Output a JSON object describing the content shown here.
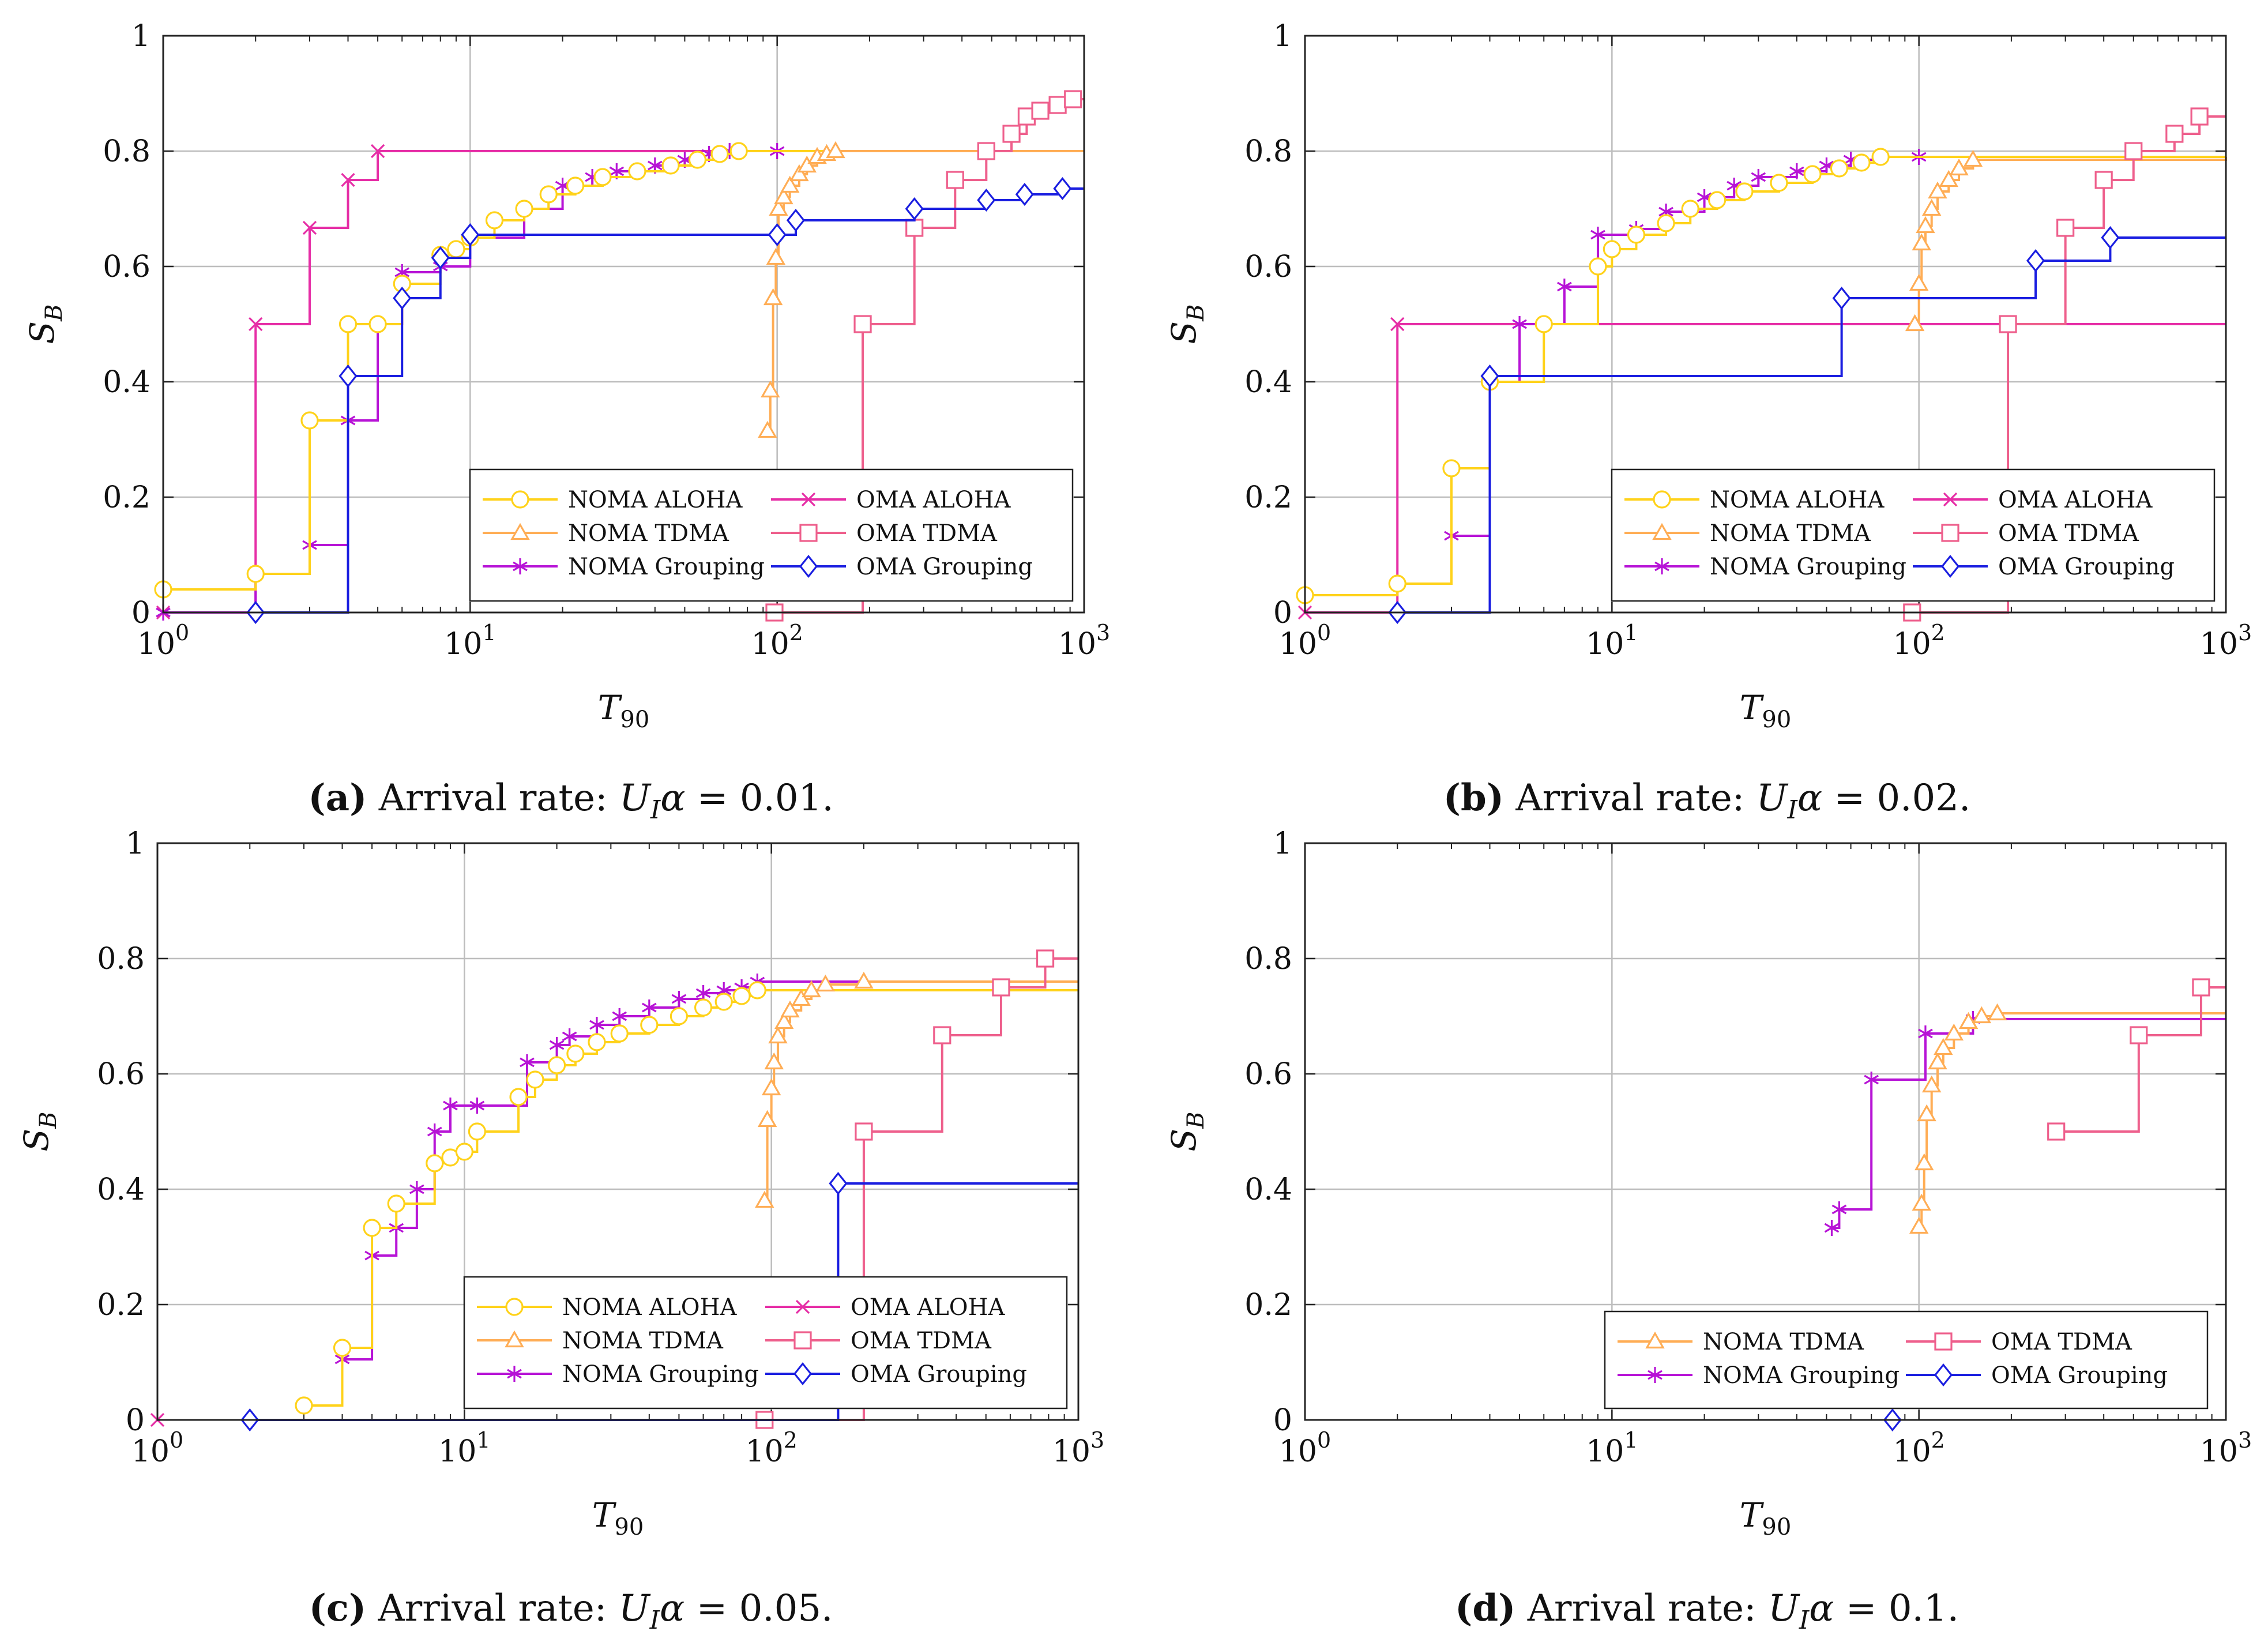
{
  "colors": {
    "NOMA ALOHA": "#ffd21a",
    "NOMA TDMA": "#ffad55",
    "NOMA Grouping": "#b713d6",
    "OMA ALOHA": "#e62ea6",
    "OMA TDMA": "#ee5f8c",
    "OMA Grouping": "#1a1ee0"
  },
  "markers": {
    "NOMA ALOHA": "circle",
    "NOMA TDMA": "triangle",
    "NOMA Grouping": "asterisk",
    "OMA ALOHA": "cross",
    "OMA TDMA": "square",
    "OMA Grouping": "diamond"
  },
  "chart_data": [
    {
      "type": "line",
      "caption_label": "(a)",
      "caption_text": "Arrival rate:",
      "caption_var": "U",
      "caption_sub": "I",
      "caption_alpha": "α",
      "caption_value": "= 0.01.",
      "xlabel": "T",
      "xlabel_sub": "90",
      "ylabel": "S",
      "ylabel_sub": "B",
      "xscale": "log",
      "xlim": [
        1,
        1000
      ],
      "ylim": [
        0,
        1
      ],
      "xticks": [
        "10",
        "10",
        "10",
        "10"
      ],
      "xtick_exp": [
        "0",
        "1",
        "2",
        "3"
      ],
      "yticks": [
        "0",
        "0.2",
        "0.4",
        "0.6",
        "0.8",
        "1"
      ],
      "legend_position": "bottom-right",
      "legend": [
        "NOMA ALOHA",
        "OMA ALOHA",
        "NOMA TDMA",
        "OMA TDMA",
        "NOMA Grouping",
        "OMA Grouping"
      ],
      "series": [
        {
          "name": "OMA ALOHA",
          "x": [
            1,
            2,
            3,
            4,
            5,
            1000
          ],
          "y": [
            0,
            0.5,
            0.667,
            0.75,
            0.8,
            0.8
          ]
        },
        {
          "name": "NOMA Grouping",
          "x": [
            1,
            2,
            3,
            4,
            5,
            6,
            8,
            10,
            15,
            20,
            25,
            30,
            40,
            50,
            60,
            70,
            100,
            1000
          ],
          "y": [
            0,
            0.067,
            0.117,
            0.333,
            0.5,
            0.59,
            0.6,
            0.65,
            0.7,
            0.74,
            0.755,
            0.765,
            0.775,
            0.785,
            0.795,
            0.8,
            0.8,
            0.8
          ]
        },
        {
          "name": "NOMA ALOHA",
          "x": [
            1,
            2,
            3,
            4,
            5,
            6,
            8,
            9,
            10,
            12,
            15,
            18,
            22,
            27,
            35,
            45,
            55,
            65,
            75,
            1000
          ],
          "y": [
            0.04,
            0.067,
            0.333,
            0.5,
            0.5,
            0.57,
            0.62,
            0.63,
            0.65,
            0.68,
            0.7,
            0.725,
            0.74,
            0.755,
            0.765,
            0.775,
            0.785,
            0.795,
            0.8,
            0.8
          ]
        },
        {
          "name": "NOMA TDMA",
          "x": [
            93,
            95,
            97,
            99,
            101,
            105,
            110,
            118,
            125,
            135,
            145,
            155,
            1000
          ],
          "y": [
            0.315,
            0.385,
            0.545,
            0.615,
            0.7,
            0.72,
            0.74,
            0.76,
            0.775,
            0.79,
            0.795,
            0.8,
            0.8
          ]
        },
        {
          "name": "OMA TDMA",
          "x": [
            98,
            190,
            280,
            380,
            480,
            580,
            650,
            720,
            820,
            920,
            1000
          ],
          "y": [
            0,
            0.5,
            0.667,
            0.75,
            0.8,
            0.83,
            0.86,
            0.87,
            0.88,
            0.89,
            0.89
          ]
        },
        {
          "name": "OMA Grouping",
          "x": [
            2,
            4,
            6,
            8,
            10,
            100,
            115,
            280,
            480,
            640,
            850,
            1000
          ],
          "y": [
            0,
            0.41,
            0.545,
            0.615,
            0.655,
            0.655,
            0.68,
            0.7,
            0.715,
            0.725,
            0.735,
            0.735
          ]
        }
      ]
    },
    {
      "type": "line",
      "caption_label": "(b)",
      "caption_text": "Arrival rate:",
      "caption_var": "U",
      "caption_sub": "I",
      "caption_alpha": "α",
      "caption_value": "= 0.02.",
      "xlabel": "T",
      "xlabel_sub": "90",
      "ylabel": "S",
      "ylabel_sub": "B",
      "xscale": "log",
      "xlim": [
        1,
        1000
      ],
      "ylim": [
        0,
        1
      ],
      "xticks": [
        "10",
        "10",
        "10",
        "10"
      ],
      "xtick_exp": [
        "0",
        "1",
        "2",
        "3"
      ],
      "yticks": [
        "0",
        "0.2",
        "0.4",
        "0.6",
        "0.8",
        "1"
      ],
      "legend_position": "bottom-right",
      "legend": [
        "NOMA ALOHA",
        "OMA ALOHA",
        "NOMA TDMA",
        "OMA TDMA",
        "NOMA Grouping",
        "OMA Grouping"
      ],
      "series": [
        {
          "name": "OMA ALOHA",
          "x": [
            1,
            2,
            1000
          ],
          "y": [
            0,
            0.5,
            0.5
          ]
        },
        {
          "name": "NOMA Grouping",
          "x": [
            3,
            4,
            5,
            7,
            9,
            12,
            15,
            20,
            25,
            30,
            40,
            50,
            60,
            75,
            100,
            1000
          ],
          "y": [
            0.133,
            0.4,
            0.5,
            0.565,
            0.655,
            0.665,
            0.695,
            0.72,
            0.74,
            0.755,
            0.765,
            0.775,
            0.785,
            0.79,
            0.79,
            0.79
          ]
        },
        {
          "name": "NOMA ALOHA",
          "x": [
            1,
            2,
            3,
            4,
            6,
            9,
            10,
            12,
            15,
            18,
            22,
            27,
            35,
            45,
            55,
            65,
            75,
            1000
          ],
          "y": [
            0.03,
            0.05,
            0.25,
            0.4,
            0.5,
            0.6,
            0.63,
            0.655,
            0.675,
            0.7,
            0.715,
            0.73,
            0.745,
            0.76,
            0.77,
            0.78,
            0.79,
            0.79
          ]
        },
        {
          "name": "NOMA TDMA",
          "x": [
            97,
            100,
            102,
            105,
            110,
            115,
            125,
            135,
            150,
            1000
          ],
          "y": [
            0.5,
            0.57,
            0.64,
            0.67,
            0.7,
            0.73,
            0.75,
            0.77,
            0.785,
            0.79
          ]
        },
        {
          "name": "OMA TDMA",
          "x": [
            95,
            195,
            300,
            400,
            500,
            680,
            820,
            1000
          ],
          "y": [
            0,
            0.5,
            0.667,
            0.75,
            0.8,
            0.83,
            0.86,
            0.86
          ]
        },
        {
          "name": "OMA Grouping",
          "x": [
            2,
            4,
            56,
            240,
            420,
            1000
          ],
          "y": [
            0,
            0.41,
            0.545,
            0.61,
            0.65,
            0.65
          ]
        }
      ]
    },
    {
      "type": "line",
      "caption_label": "(c)",
      "caption_text": "Arrival rate:",
      "caption_var": "U",
      "caption_sub": "I",
      "caption_alpha": "α",
      "caption_value": "= 0.05.",
      "xlabel": "T",
      "xlabel_sub": "90",
      "ylabel": "S",
      "ylabel_sub": "B",
      "xscale": "log",
      "xlim": [
        1,
        1000
      ],
      "ylim": [
        0,
        1
      ],
      "xticks": [
        "10",
        "10",
        "10",
        "10"
      ],
      "xtick_exp": [
        "0",
        "1",
        "2",
        "3"
      ],
      "yticks": [
        "0",
        "0.2",
        "0.4",
        "0.6",
        "0.8",
        "1"
      ],
      "legend_position": "bottom-right",
      "legend": [
        "NOMA ALOHA",
        "OMA ALOHA",
        "NOMA TDMA",
        "OMA TDMA",
        "NOMA Grouping",
        "OMA Grouping"
      ],
      "series": [
        {
          "name": "OMA ALOHA",
          "x": [
            1
          ],
          "y": [
            0
          ]
        },
        {
          "name": "NOMA Grouping",
          "x": [
            4,
            5,
            6,
            7,
            8,
            9,
            11,
            16,
            20,
            22,
            27,
            32,
            40,
            50,
            60,
            70,
            80,
            90,
            1000
          ],
          "y": [
            0.105,
            0.285,
            0.333,
            0.4,
            0.5,
            0.545,
            0.545,
            0.62,
            0.65,
            0.665,
            0.685,
            0.7,
            0.715,
            0.73,
            0.74,
            0.745,
            0.75,
            0.76,
            0.76
          ]
        },
        {
          "name": "NOMA ALOHA",
          "x": [
            3,
            4,
            5,
            6,
            8,
            9,
            10,
            11,
            15,
            17,
            20,
            23,
            27,
            32,
            40,
            50,
            60,
            70,
            80,
            90,
            1000
          ],
          "y": [
            0.025,
            0.125,
            0.333,
            0.375,
            0.445,
            0.455,
            0.465,
            0.5,
            0.56,
            0.59,
            0.615,
            0.635,
            0.655,
            0.67,
            0.685,
            0.7,
            0.715,
            0.725,
            0.735,
            0.745,
            0.745
          ]
        },
        {
          "name": "NOMA TDMA",
          "x": [
            95,
            97,
            100,
            102,
            105,
            110,
            115,
            125,
            135,
            150,
            200,
            1000
          ],
          "y": [
            0.38,
            0.52,
            0.575,
            0.62,
            0.665,
            0.69,
            0.71,
            0.73,
            0.745,
            0.755,
            0.76,
            0.76
          ]
        },
        {
          "name": "OMA TDMA",
          "x": [
            95,
            200,
            360,
            560,
            780,
            1000
          ],
          "y": [
            0,
            0.5,
            0.667,
            0.75,
            0.8,
            0.8
          ]
        },
        {
          "name": "OMA Grouping",
          "x": [
            2,
            165,
            1000
          ],
          "y": [
            0,
            0.41,
            0.41
          ]
        }
      ]
    },
    {
      "type": "line",
      "caption_label": "(d)",
      "caption_text": "Arrival rate:",
      "caption_var": "U",
      "caption_sub": "I",
      "caption_alpha": "α",
      "caption_value": "= 0.1.",
      "xlabel": "T",
      "xlabel_sub": "90",
      "ylabel": "S",
      "ylabel_sub": "B",
      "xscale": "log",
      "xlim": [
        1,
        1000
      ],
      "ylim": [
        0,
        1
      ],
      "xticks": [
        "10",
        "10",
        "10",
        "10"
      ],
      "xtick_exp": [
        "0",
        "1",
        "2",
        "3"
      ],
      "yticks": [
        "0",
        "0.2",
        "0.4",
        "0.6",
        "0.8",
        "1"
      ],
      "legend_position": "bottom-right",
      "legend": [
        "NOMA TDMA",
        "OMA TDMA",
        "NOMA Grouping",
        "OMA Grouping"
      ],
      "series": [
        {
          "name": "NOMA Grouping",
          "x": [
            52,
            55,
            70,
            105,
            150,
            1000
          ],
          "y": [
            0.333,
            0.365,
            0.59,
            0.67,
            0.695,
            0.695
          ]
        },
        {
          "name": "NOMA TDMA",
          "x": [
            100,
            102,
            104,
            106,
            110,
            115,
            120,
            130,
            145,
            160,
            180,
            1000
          ],
          "y": [
            0.335,
            0.375,
            0.445,
            0.53,
            0.58,
            0.62,
            0.645,
            0.67,
            0.69,
            0.7,
            0.705,
            0.705
          ]
        },
        {
          "name": "OMA TDMA",
          "x": [
            280,
            520,
            830,
            1000
          ],
          "y": [
            0.5,
            0.667,
            0.75,
            0.75
          ]
        },
        {
          "name": "OMA Grouping",
          "x": [
            82
          ],
          "y": [
            0
          ]
        }
      ]
    }
  ]
}
